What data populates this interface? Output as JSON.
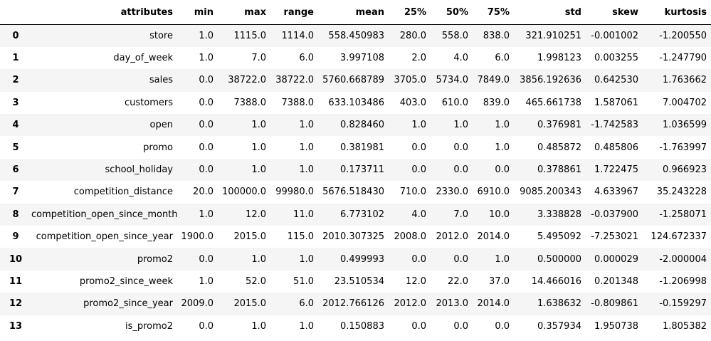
{
  "table": {
    "columns": [
      "",
      "attributes",
      "min",
      "max",
      "range",
      "mean",
      "25%",
      "50%",
      "75%",
      "std",
      "skew",
      "kurtosis"
    ],
    "rows": [
      {
        "index": "0",
        "attributes": "store",
        "min": "1.0",
        "max": "1115.0",
        "range": "1114.0",
        "mean": "558.450983",
        "p25": "280.0",
        "p50": "558.0",
        "p75": "838.0",
        "std": "321.910251",
        "skew": "-0.001002",
        "kurtosis": "-1.200550"
      },
      {
        "index": "1",
        "attributes": "day_of_week",
        "min": "1.0",
        "max": "7.0",
        "range": "6.0",
        "mean": "3.997108",
        "p25": "2.0",
        "p50": "4.0",
        "p75": "6.0",
        "std": "1.998123",
        "skew": "0.003255",
        "kurtosis": "-1.247790"
      },
      {
        "index": "2",
        "attributes": "sales",
        "min": "0.0",
        "max": "38722.0",
        "range": "38722.0",
        "mean": "5760.668789",
        "p25": "3705.0",
        "p50": "5734.0",
        "p75": "7849.0",
        "std": "3856.192636",
        "skew": "0.642530",
        "kurtosis": "1.763662"
      },
      {
        "index": "3",
        "attributes": "customers",
        "min": "0.0",
        "max": "7388.0",
        "range": "7388.0",
        "mean": "633.103486",
        "p25": "403.0",
        "p50": "610.0",
        "p75": "839.0",
        "std": "465.661738",
        "skew": "1.587061",
        "kurtosis": "7.004702"
      },
      {
        "index": "4",
        "attributes": "open",
        "min": "0.0",
        "max": "1.0",
        "range": "1.0",
        "mean": "0.828460",
        "p25": "1.0",
        "p50": "1.0",
        "p75": "1.0",
        "std": "0.376981",
        "skew": "-1.742583",
        "kurtosis": "1.036599"
      },
      {
        "index": "5",
        "attributes": "promo",
        "min": "0.0",
        "max": "1.0",
        "range": "1.0",
        "mean": "0.381981",
        "p25": "0.0",
        "p50": "0.0",
        "p75": "1.0",
        "std": "0.485872",
        "skew": "0.485806",
        "kurtosis": "-1.763997"
      },
      {
        "index": "6",
        "attributes": "school_holiday",
        "min": "0.0",
        "max": "1.0",
        "range": "1.0",
        "mean": "0.173711",
        "p25": "0.0",
        "p50": "0.0",
        "p75": "0.0",
        "std": "0.378861",
        "skew": "1.722475",
        "kurtosis": "0.966923"
      },
      {
        "index": "7",
        "attributes": "competition_distance",
        "min": "20.0",
        "max": "100000.0",
        "range": "99980.0",
        "mean": "5676.518430",
        "p25": "710.0",
        "p50": "2330.0",
        "p75": "6910.0",
        "std": "9085.200343",
        "skew": "4.633967",
        "kurtosis": "35.243228"
      },
      {
        "index": "8",
        "attributes": "competition_open_since_month",
        "min": "1.0",
        "max": "12.0",
        "range": "11.0",
        "mean": "6.773102",
        "p25": "4.0",
        "p50": "7.0",
        "p75": "10.0",
        "std": "3.338828",
        "skew": "-0.037900",
        "kurtosis": "-1.258071"
      },
      {
        "index": "9",
        "attributes": "competition_open_since_year",
        "min": "1900.0",
        "max": "2015.0",
        "range": "115.0",
        "mean": "2010.307325",
        "p25": "2008.0",
        "p50": "2012.0",
        "p75": "2014.0",
        "std": "5.495092",
        "skew": "-7.253021",
        "kurtosis": "124.672337"
      },
      {
        "index": "10",
        "attributes": "promo2",
        "min": "0.0",
        "max": "1.0",
        "range": "1.0",
        "mean": "0.499993",
        "p25": "0.0",
        "p50": "0.0",
        "p75": "1.0",
        "std": "0.500000",
        "skew": "0.000029",
        "kurtosis": "-2.000004"
      },
      {
        "index": "11",
        "attributes": "promo2_since_week",
        "min": "1.0",
        "max": "52.0",
        "range": "51.0",
        "mean": "23.510534",
        "p25": "12.0",
        "p50": "22.0",
        "p75": "37.0",
        "std": "14.466016",
        "skew": "0.201348",
        "kurtosis": "-1.206998"
      },
      {
        "index": "12",
        "attributes": "promo2_since_year",
        "min": "2009.0",
        "max": "2015.0",
        "range": "6.0",
        "mean": "2012.766126",
        "p25": "2012.0",
        "p50": "2013.0",
        "p75": "2014.0",
        "std": "1.638632",
        "skew": "-0.809861",
        "kurtosis": "-0.159297"
      },
      {
        "index": "13",
        "attributes": "is_promo2",
        "min": "0.0",
        "max": "1.0",
        "range": "1.0",
        "mean": "0.150883",
        "p25": "0.0",
        "p50": "0.0",
        "p75": "0.0",
        "std": "0.357934",
        "skew": "1.950738",
        "kurtosis": "1.805382"
      }
    ]
  }
}
